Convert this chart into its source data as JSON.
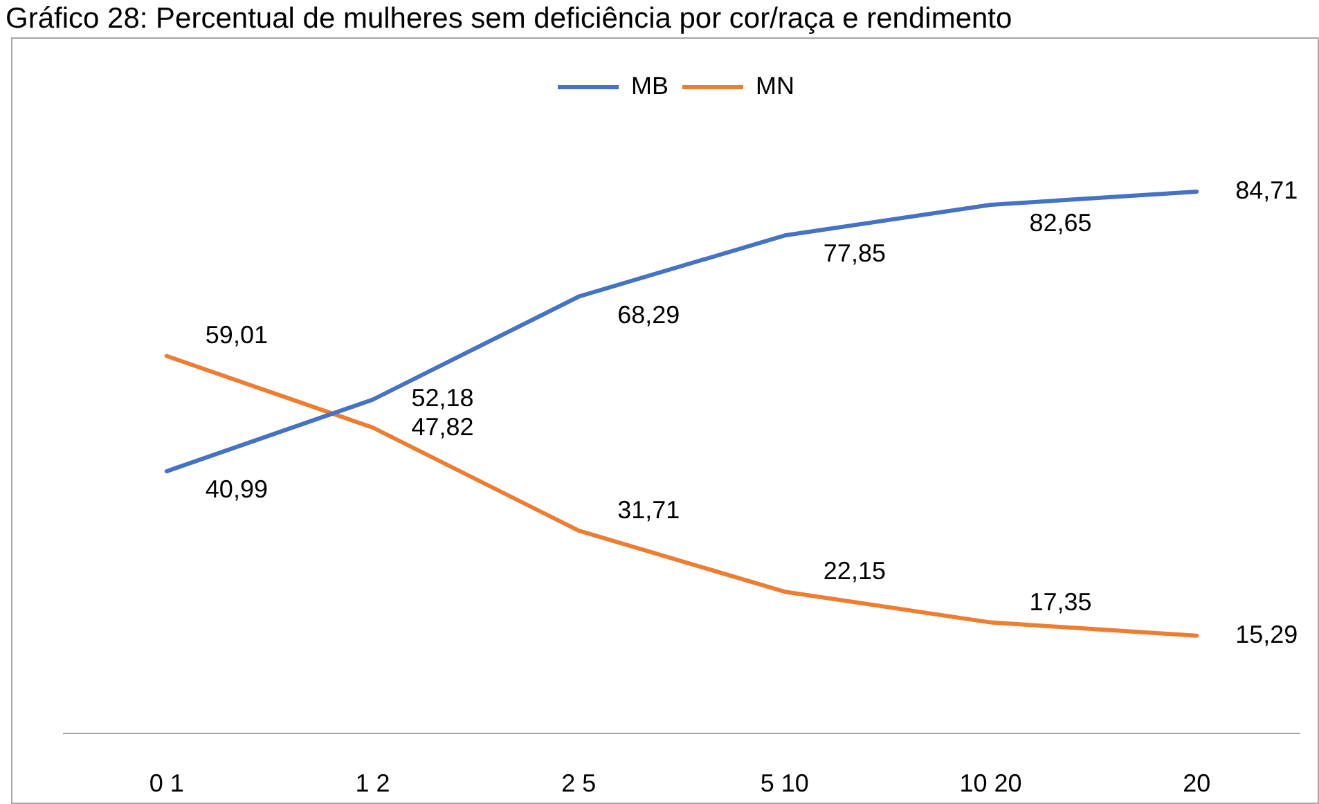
{
  "chart_data": {
    "type": "line",
    "title": "Gráfico 28: Percentual de mulheres sem deficiência por cor/raça e rendimento",
    "categories": [
      "0 1",
      "1 2",
      "2 5",
      "5 10",
      "10 20",
      "20"
    ],
    "series": [
      {
        "name": "MB",
        "color": "#4472c4",
        "values": [
          40.99,
          52.18,
          68.29,
          77.85,
          82.65,
          84.71
        ],
        "value_labels": [
          "40,99",
          "52,18",
          "68,29",
          "77,85",
          "82,65",
          "84,71"
        ]
      },
      {
        "name": "MN",
        "color": "#ed7d31",
        "values": [
          59.01,
          47.82,
          31.71,
          22.15,
          17.35,
          15.29
        ],
        "value_labels": [
          "59,01",
          "47,82",
          "31,71",
          "22,15",
          "17,35",
          "15,29"
        ]
      }
    ],
    "tick_labels": "x",
    "legend": "top",
    "marker": "none",
    "grid": false
  }
}
